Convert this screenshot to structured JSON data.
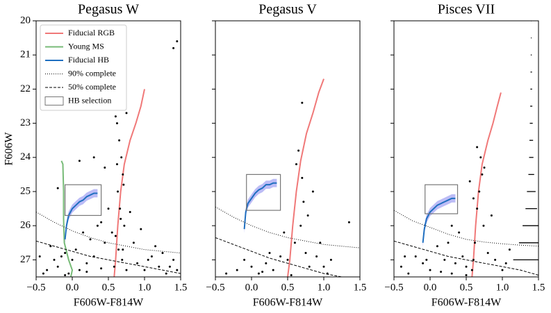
{
  "chart_data": [
    {
      "type": "scatter",
      "title": "Pegasus W",
      "xlabel": "F606W-F814W",
      "ylabel": "F606W",
      "xlim": [
        -0.5,
        1.5
      ],
      "ylim": [
        27.5,
        20
      ],
      "xticks": [
        {
          "value": -0.5,
          "label": "−0.5"
        },
        {
          "value": 0,
          "label": "0.0"
        },
        {
          "value": 0.5,
          "label": "0.5"
        },
        {
          "value": 1,
          "label": "1.0"
        },
        {
          "value": 1.5,
          "label": "1.5"
        }
      ],
      "yticks": [
        20,
        21,
        22,
        23,
        24,
        25,
        26,
        27
      ],
      "show_ytick_labels": true,
      "points": {
        "color": "#000000",
        "x": [
          0.62,
          0.65,
          0.68,
          0.7,
          0.63,
          0.66,
          0.72,
          0.6,
          0.64,
          0.69,
          0.75,
          0.58,
          0.67,
          0.71,
          0.62,
          0.8,
          0.55,
          0.45,
          0.3,
          0.2,
          0.1,
          0.0,
          -0.1,
          -0.2,
          -0.3,
          -0.4,
          -0.45,
          0.9,
          1.0,
          1.1,
          1.2,
          1.3,
          1.4,
          0.35,
          0.25,
          0.15,
          0.05,
          -0.05,
          -0.15,
          -0.25,
          -0.35,
          0.5,
          0.4,
          0.85,
          0.95,
          1.05,
          1.15,
          1.25,
          1.35,
          1.45,
          0.3,
          0.1,
          -0.2,
          0.45,
          0.75,
          0.6,
          1.45,
          1.4,
          -0.1,
          0.2,
          0.7,
          0.4
        ],
        "y": [
          23,
          23.5,
          24,
          24.5,
          25,
          25.5,
          26,
          26.3,
          26.7,
          27,
          27.3,
          27.2,
          25.8,
          24.8,
          24.2,
          25.6,
          26.2,
          26.5,
          26.9,
          27.1,
          27.3,
          27.0,
          26.8,
          27.2,
          26.6,
          27.4,
          26.9,
          27.1,
          27.3,
          26.9,
          27.2,
          27.4,
          27.0,
          26.0,
          26.4,
          26.2,
          26.7,
          27.4,
          26.9,
          27.0,
          27.3,
          25.5,
          25.9,
          26.5,
          26.1,
          27.0,
          26.6,
          26.8,
          27.2,
          27.3,
          24.0,
          24.1,
          24.9,
          24.3,
          22.7,
          22.8,
          20.6,
          20.8,
          27.45,
          27.35,
          26.7,
          27.25
        ]
      },
      "series": [
        {
          "name": "Fiducial RGB",
          "kind": "line",
          "style": "solid",
          "color": "#f07878",
          "x": [
            0.58,
            0.6,
            0.63,
            0.67,
            0.72,
            0.8,
            0.88,
            0.95,
            1.0
          ],
          "y": [
            27.5,
            27,
            26,
            25,
            24.2,
            23.5,
            23,
            22.5,
            22
          ]
        },
        {
          "name": "Young MS",
          "kind": "line",
          "style": "solid",
          "color": "#77bb77",
          "x": [
            -0.15,
            -0.13,
            -0.12,
            -0.12,
            -0.11,
            -0.05,
            0.0,
            -0.02
          ],
          "y": [
            24.1,
            24.2,
            25,
            25.8,
            26.5,
            27.0,
            27.3,
            27.5
          ]
        },
        {
          "name": "Fiducial HB",
          "kind": "line",
          "style": "solid",
          "color": "#1f6fc0",
          "band": 0.12,
          "band_color": "#8f8ff0",
          "x": [
            -0.1,
            -0.08,
            -0.05,
            0,
            0.05,
            0.1,
            0.15,
            0.2,
            0.25,
            0.3,
            0.35
          ],
          "y": [
            26.4,
            26.0,
            25.7,
            25.5,
            25.4,
            25.3,
            25.25,
            25.15,
            25.1,
            25.05,
            25.05
          ]
        },
        {
          "name": "90% complete",
          "kind": "line",
          "style": "dotted",
          "color": "#000000",
          "x": [
            -0.5,
            -0.25,
            0,
            0.25,
            0.5,
            0.75,
            1,
            1.25,
            1.5
          ],
          "y": [
            25.6,
            25.9,
            26.15,
            26.35,
            26.5,
            26.6,
            26.7,
            26.75,
            26.8
          ]
        },
        {
          "name": "50% complete",
          "kind": "line",
          "style": "dashed",
          "color": "#000000",
          "x": [
            -0.5,
            -0.25,
            0,
            0.25,
            0.5,
            0.75,
            1,
            1.25,
            1.5
          ],
          "y": [
            26.45,
            26.6,
            26.75,
            26.9,
            27.0,
            27.1,
            27.2,
            27.3,
            27.4
          ]
        },
        {
          "name": "HB selection",
          "kind": "rect",
          "style": "solid",
          "color": "#777777",
          "x": [
            -0.1,
            0.4
          ],
          "y": [
            24.8,
            25.7
          ]
        }
      ]
    },
    {
      "type": "scatter",
      "title": "Pegasus V",
      "xlabel": "F606W-F814W",
      "xlim": [
        -0.5,
        1.5
      ],
      "ylim": [
        27.5,
        20
      ],
      "xticks": [
        {
          "value": -0.5,
          "label": "−0.5"
        },
        {
          "value": 0,
          "label": "0.0"
        },
        {
          "value": 0.5,
          "label": "0.5"
        },
        {
          "value": 1,
          "label": "1.0"
        },
        {
          "value": 1.5,
          "label": "1.5"
        }
      ],
      "yticks": [
        20,
        21,
        22,
        23,
        24,
        25,
        26,
        27
      ],
      "show_ytick_labels": false,
      "points": {
        "color": "#000000",
        "x": [
          0.65,
          0.7,
          0.72,
          0.68,
          0.6,
          0.75,
          0.8,
          0.5,
          0.4,
          0.3,
          0.2,
          0.1,
          0.0,
          -0.2,
          -0.35,
          0.9,
          1.0,
          1.1,
          0.95,
          1.35,
          0.55,
          0.85,
          0.62,
          0.25,
          0.45,
          0.78,
          -0.1,
          0.15,
          1.05,
          0.7
        ],
        "y": [
          23.8,
          24.6,
          25.3,
          26.0,
          26.5,
          26.8,
          27.2,
          27.0,
          26.9,
          27.3,
          27.1,
          27.4,
          27.2,
          27.3,
          27.4,
          26.9,
          27.2,
          27.0,
          26.5,
          25.9,
          27.45,
          25.0,
          24.2,
          26.8,
          26.2,
          25.7,
          27.0,
          27.35,
          27.4,
          22.4
        ]
      },
      "series": [
        {
          "kind": "line",
          "style": "solid",
          "color": "#f07878",
          "x": [
            0.5,
            0.53,
            0.57,
            0.62,
            0.68,
            0.76,
            0.85,
            0.93,
            1.0
          ],
          "y": [
            27.5,
            27,
            26,
            25,
            24.1,
            23.3,
            22.7,
            22.1,
            21.7
          ]
        },
        {
          "kind": "line",
          "style": "solid",
          "color": "#1f6fc0",
          "band": 0.12,
          "band_color": "#8f8ff0",
          "x": [
            -0.1,
            -0.08,
            -0.05,
            0,
            0.05,
            0.1,
            0.15,
            0.2,
            0.25,
            0.3,
            0.35
          ],
          "y": [
            26.1,
            25.6,
            25.35,
            25.2,
            25.05,
            24.95,
            24.9,
            24.8,
            24.8,
            24.75,
            24.75
          ]
        },
        {
          "kind": "line",
          "style": "dotted",
          "color": "#000000",
          "x": [
            -0.5,
            -0.25,
            0,
            0.25,
            0.5,
            0.75,
            1,
            1.25,
            1.5
          ],
          "y": [
            25.45,
            25.75,
            26.0,
            26.2,
            26.35,
            26.45,
            26.55,
            26.6,
            26.65
          ]
        },
        {
          "kind": "line",
          "style": "dashed",
          "color": "#000000",
          "x": [
            -0.5,
            -0.25,
            0,
            0.25,
            0.5,
            0.75,
            1,
            1.25
          ],
          "y": [
            26.35,
            26.55,
            26.75,
            26.95,
            27.1,
            27.25,
            27.4,
            27.5
          ]
        },
        {
          "kind": "rect",
          "style": "solid",
          "color": "#777777",
          "x": [
            -0.07,
            0.4
          ],
          "y": [
            24.5,
            25.55
          ]
        }
      ]
    },
    {
      "type": "scatter",
      "title": "Pisces VII",
      "xlabel": "F606W-F814W",
      "xlim": [
        -0.5,
        1.5
      ],
      "ylim": [
        27.5,
        20
      ],
      "xticks": [
        {
          "value": -0.5,
          "label": "−0.5"
        },
        {
          "value": 0,
          "label": "0.0"
        },
        {
          "value": 0.5,
          "label": "0.5"
        },
        {
          "value": 1,
          "label": "1.0"
        },
        {
          "value": 1.5,
          "label": "1.5"
        }
      ],
      "yticks": [
        20,
        21,
        22,
        23,
        24,
        25,
        26,
        27
      ],
      "show_ytick_labels": false,
      "points": {
        "color": "#000000",
        "x": [
          0.7,
          0.72,
          0.68,
          0.65,
          0.74,
          0.62,
          0.6,
          0.58,
          0.8,
          0.85,
          0.5,
          0.45,
          0.35,
          0.3,
          0.2,
          0.1,
          0.0,
          -0.1,
          -0.2,
          -0.3,
          -0.4,
          0.9,
          1.0,
          1.1,
          0.6,
          0.55,
          0.25,
          0.4,
          -0.05,
          0.15,
          0.65,
          0.75,
          0.5,
          0.3,
          1.05,
          -0.35
        ],
        "y": [
          24.0,
          24.5,
          25.0,
          25.5,
          26.0,
          26.5,
          27.0,
          27.3,
          26.8,
          25.7,
          27.2,
          26.9,
          27.1,
          27.4,
          27.0,
          26.6,
          27.3,
          27.1,
          26.9,
          27.4,
          27.2,
          27.0,
          27.3,
          26.7,
          25.2,
          24.7,
          26.5,
          26.2,
          27.0,
          27.35,
          23.7,
          24.3,
          27.45,
          26.0,
          27.1,
          26.9
        ]
      },
      "series": [
        {
          "kind": "line",
          "style": "solid",
          "color": "#f07878",
          "x": [
            0.58,
            0.6,
            0.63,
            0.67,
            0.72,
            0.8,
            0.87,
            0.93,
            0.98
          ],
          "y": [
            27.5,
            27,
            26,
            25,
            24.2,
            23.5,
            23,
            22.5,
            22.1
          ]
        },
        {
          "kind": "line",
          "style": "solid",
          "color": "#1f6fc0",
          "band": 0.12,
          "band_color": "#8f8ff0",
          "x": [
            -0.1,
            -0.08,
            -0.05,
            0,
            0.05,
            0.1,
            0.15,
            0.2,
            0.25,
            0.3,
            0.35
          ],
          "y": [
            26.5,
            26.1,
            25.8,
            25.6,
            25.5,
            25.4,
            25.35,
            25.3,
            25.25,
            25.2,
            25.2
          ]
        },
        {
          "kind": "line",
          "style": "dotted",
          "color": "#000000",
          "x": [
            -0.5,
            -0.25,
            0,
            0.25,
            0.5,
            0.75,
            1,
            1.25,
            1.5
          ],
          "y": [
            25.55,
            25.85,
            26.05,
            26.25,
            26.4,
            26.48,
            26.53,
            26.57,
            26.6
          ]
        },
        {
          "kind": "line",
          "style": "dashed",
          "color": "#000000",
          "x": [
            -0.5,
            -0.25,
            0,
            0.25,
            0.5,
            0.75,
            1,
            1.25,
            1.5
          ],
          "y": [
            26.45,
            26.6,
            26.75,
            26.9,
            27.0,
            27.1,
            27.2,
            27.3,
            27.45
          ]
        },
        {
          "kind": "rect",
          "style": "solid",
          "color": "#777777",
          "x": [
            -0.07,
            0.38
          ],
          "y": [
            24.8,
            25.65
          ]
        }
      ],
      "errorbars": {
        "color": "#000000",
        "x": 1.4,
        "y": [
          20.0,
          20.5,
          21,
          21.5,
          22,
          22.5,
          23,
          23.5,
          24,
          24.5,
          25,
          25.5,
          26,
          26.5,
          27
        ],
        "xerr": [
          0.005,
          0.005,
          0.007,
          0.01,
          0.012,
          0.015,
          0.02,
          0.025,
          0.03,
          0.04,
          0.06,
          0.08,
          0.12,
          0.17,
          0.25
        ]
      }
    }
  ]
}
